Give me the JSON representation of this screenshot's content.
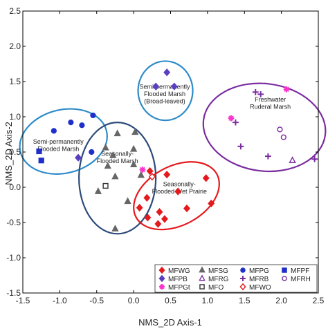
{
  "chart_data": {
    "type": "scatter",
    "xlabel": "NMS_2D Axis-1",
    "ylabel": "NMS_2D Axis-2",
    "xlim": [
      -1.5,
      2.5
    ],
    "ylim": [
      -1.5,
      2.5
    ],
    "xticks": [
      -1.5,
      -1.0,
      -0.5,
      0.0,
      0.5,
      1.0,
      1.5,
      2.0,
      2.5
    ],
    "yticks": [
      -1.5,
      -1.0,
      -0.5,
      0.0,
      0.5,
      1.0,
      1.5,
      2.0,
      2.5
    ],
    "xtick_labels": [
      "-1.5",
      "-1.0",
      "-0.5",
      "0.0",
      "0.5",
      "1.0",
      "1.5",
      "2.0",
      "2.5"
    ],
    "ytick_labels": [
      "-1.5",
      "-1.0",
      "-0.5",
      "0.0",
      "0.5",
      "1.0",
      "1.5",
      "2.0",
      "2.5"
    ],
    "grid": false,
    "legend_position": "bottom-right",
    "series": [
      {
        "name": "MFWG",
        "marker": "diamond",
        "filled": true,
        "color": "#e41a1c",
        "points": [
          [
            0.22,
            0.23
          ],
          [
            0.45,
            0.18
          ],
          [
            0.98,
            0.13
          ],
          [
            0.6,
            -0.06
          ],
          [
            0.18,
            -0.15
          ],
          [
            1.05,
            -0.23
          ],
          [
            0.72,
            -0.3
          ],
          [
            0.35,
            -0.35
          ],
          [
            0.08,
            -0.29
          ],
          [
            0.42,
            -0.45
          ],
          [
            0.19,
            -0.43
          ],
          [
            0.33,
            -0.52
          ]
        ]
      },
      {
        "name": "MFPB",
        "marker": "diamond",
        "filled": true,
        "color": "#5a3fc0",
        "points": [
          [
            0.45,
            1.63
          ],
          [
            0.3,
            1.43
          ],
          [
            0.55,
            1.43
          ],
          [
            -0.75,
            0.42
          ]
        ]
      },
      {
        "name": "MFPGt",
        "marker": "asterisk",
        "filled": true,
        "color": "#ff33cc",
        "points": [
          [
            2.07,
            1.39
          ],
          [
            1.32,
            0.98
          ],
          [
            0.12,
            0.25
          ]
        ]
      },
      {
        "name": "MFSG",
        "marker": "triangle",
        "filled": true,
        "color": "#666666",
        "points": [
          [
            0.02,
            0.78
          ],
          [
            -0.22,
            0.76
          ],
          [
            -0.38,
            0.56
          ],
          [
            0.0,
            0.54
          ],
          [
            -0.28,
            0.45
          ],
          [
            0.0,
            0.32
          ],
          [
            -0.35,
            0.3
          ],
          [
            -0.25,
            0.15
          ],
          [
            0.1,
            0.17
          ],
          [
            -0.48,
            -0.06
          ],
          [
            -0.08,
            -0.2
          ],
          [
            -0.25,
            -0.59
          ]
        ]
      },
      {
        "name": "MFRG",
        "marker": "triangle",
        "filled": false,
        "color": "#7a2ca0",
        "points": [
          [
            2.15,
            0.38
          ]
        ]
      },
      {
        "name": "MFO",
        "marker": "square",
        "filled": false,
        "color": "#333333",
        "points": [
          [
            -0.38,
            0.02
          ]
        ]
      },
      {
        "name": "MFPG",
        "marker": "circle",
        "filled": true,
        "color": "#1f2fc9",
        "points": [
          [
            -0.85,
            0.92
          ],
          [
            -0.55,
            1.02
          ],
          [
            -1.08,
            0.8
          ],
          [
            -0.7,
            0.88
          ],
          [
            -0.57,
            0.5
          ]
        ]
      },
      {
        "name": "MFRB",
        "marker": "plus",
        "filled": true,
        "color": "#7a2ca0",
        "points": [
          [
            1.65,
            1.35
          ],
          [
            1.72,
            1.32
          ],
          [
            1.38,
            0.92
          ],
          [
            1.45,
            0.58
          ],
          [
            1.82,
            0.44
          ],
          [
            2.45,
            0.4
          ]
        ]
      },
      {
        "name": "MFWO",
        "marker": "diamond",
        "filled": false,
        "color": "#e41a1c",
        "points": [
          [
            0.25,
            0.15
          ]
        ]
      },
      {
        "name": "MFPF",
        "marker": "square",
        "filled": true,
        "color": "#1f2fc9",
        "points": [
          [
            -1.28,
            0.51
          ],
          [
            -1.25,
            0.38
          ]
        ]
      },
      {
        "name": "MFRH",
        "marker": "circle",
        "filled": false,
        "color": "#7a2ca0",
        "points": [
          [
            1.98,
            0.82
          ],
          [
            2.03,
            0.71
          ]
        ]
      }
    ],
    "groups": [
      {
        "label": [
          "Semi-permanently",
          "Flooded Marsh"
        ],
        "color": "#2e8bc9",
        "cx": -0.95,
        "cy": 0.65,
        "rx": 0.6,
        "ry": 0.45,
        "angle": 14,
        "label_x": -1.02,
        "label_y": 0.6
      },
      {
        "label": [
          "Semi-permanently",
          "Flooded Marsh",
          "(Broad-leaved)"
        ],
        "color": "#2e8bc9",
        "cx": 0.43,
        "cy": 1.37,
        "rx": 0.37,
        "ry": 0.42,
        "angle": 0,
        "label_x": 0.42,
        "label_y": 1.33
      },
      {
        "label": [
          "Seasonally-",
          "Flooded Marsh"
        ],
        "color": "#2c4a7a",
        "cx": -0.22,
        "cy": 0.13,
        "rx": 0.52,
        "ry": 0.79,
        "angle": 0,
        "label_x": -0.22,
        "label_y": 0.43
      },
      {
        "label": [
          "Seasonally-",
          "Flooded Wet Prairie"
        ],
        "color": "#e41a1c",
        "cx": 0.58,
        "cy": -0.12,
        "rx": 0.62,
        "ry": 0.42,
        "angle": 28,
        "label_x": 0.62,
        "label_y": 0.0
      },
      {
        "label": [
          "Freshwater",
          "Ruderal Marsh"
        ],
        "color": "#7a2ca0",
        "cx": 1.77,
        "cy": 0.85,
        "rx": 0.83,
        "ry": 0.62,
        "angle": -7,
        "label_x": 1.85,
        "label_y": 1.2
      }
    ]
  }
}
